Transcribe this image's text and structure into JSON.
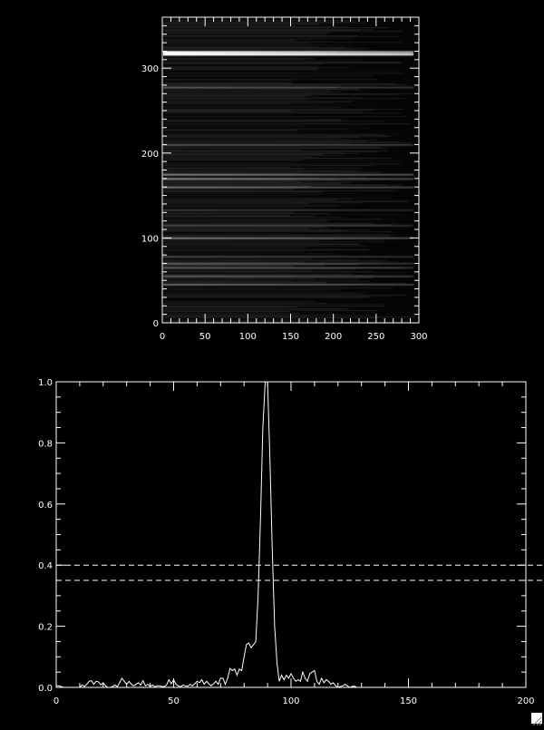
{
  "colors": {
    "background": "#000000",
    "foreground": "#ffffff"
  },
  "chart_data": [
    {
      "type": "heatmap",
      "xlim": [
        0,
        300
      ],
      "ylim": [
        0,
        360
      ],
      "xticks": [
        "0",
        "50",
        "100",
        "150",
        "200",
        "250",
        "300"
      ],
      "yticks": [
        "0",
        "100",
        "200",
        "300"
      ],
      "xtick_values": [
        0,
        50,
        100,
        150,
        200,
        250,
        300
      ],
      "ytick_values": [
        0,
        100,
        200,
        300
      ],
      "colormap": "grayscale",
      "bright_rows": [
        {
          "y": 320,
          "intensity": 1.0
        },
        {
          "y": 317,
          "intensity": 0.8
        },
        {
          "y": 278,
          "intensity": 0.3
        },
        {
          "y": 210,
          "intensity": 0.25
        },
        {
          "y": 175,
          "intensity": 0.5
        },
        {
          "y": 170,
          "intensity": 0.45
        },
        {
          "y": 160,
          "intensity": 0.4
        },
        {
          "y": 133,
          "intensity": 0.2
        },
        {
          "y": 115,
          "intensity": 0.2
        },
        {
          "y": 100,
          "intensity": 0.45
        },
        {
          "y": 78,
          "intensity": 0.25
        },
        {
          "y": 70,
          "intensity": 0.3
        },
        {
          "y": 65,
          "intensity": 0.3
        },
        {
          "y": 55,
          "intensity": 0.3
        },
        {
          "y": 45,
          "intensity": 0.35
        }
      ]
    },
    {
      "type": "line",
      "xlim": [
        0,
        200
      ],
      "ylim": [
        0,
        1.0
      ],
      "xticks": [
        "0",
        "50",
        "100",
        "150",
        "200"
      ],
      "yticks": [
        "0.0",
        "0.2",
        "0.4",
        "0.6",
        "0.8",
        "1.0"
      ],
      "xtick_values": [
        0,
        50,
        100,
        150,
        200
      ],
      "ytick_values": [
        0,
        0.2,
        0.4,
        0.6,
        0.8,
        1.0
      ],
      "hlines": [
        {
          "y": 0.4,
          "style": "dashed"
        },
        {
          "y": 0.35,
          "style": "dashed"
        }
      ],
      "x_start": 0,
      "values": [
        0.005,
        0.005,
        0.003,
        0,
        0,
        0,
        0,
        0,
        0,
        0,
        0,
        0.008,
        0.003,
        0.01,
        0.02,
        0.022,
        0.01,
        0.02,
        0.018,
        0.008,
        0.015,
        0.005,
        0,
        0,
        0.003,
        0.008,
        0.002,
        0.015,
        0.03,
        0.02,
        0.01,
        0.02,
        0.01,
        0.005,
        0.01,
        0.015,
        0.008,
        0.022,
        0.005,
        0.01,
        0.003,
        0.008,
        0.002,
        0.005,
        0.005,
        0.003,
        0.002,
        0.008,
        0.025,
        0.012,
        0.025,
        0.01,
        0.005,
        0.002,
        0.008,
        0.005,
        0.003,
        0.01,
        0.005,
        0.012,
        0.02,
        0.015,
        0.025,
        0.01,
        0.02,
        0.012,
        0.005,
        0.012,
        0.02,
        0.01,
        0.03,
        0.03,
        0.01,
        0.03,
        0.062,
        0.055,
        0.06,
        0.04,
        0.06,
        0.055,
        0.1,
        0.14,
        0.145,
        0.13,
        0.14,
        0.15,
        0.3,
        0.55,
        0.85,
        1.0,
        1.0,
        0.75,
        0.45,
        0.2,
        0.08,
        0.02,
        0.04,
        0.025,
        0.04,
        0.03,
        0.045,
        0.03,
        0.02,
        0.025,
        0.02,
        0.05,
        0.03,
        0.02,
        0.045,
        0.05,
        0.055,
        0.02,
        0.01,
        0.03,
        0.015,
        0.025,
        0.02,
        0.01,
        0.015,
        0.005,
        0,
        0.003,
        0.005,
        0.01,
        0.005,
        0,
        0.003,
        0.004,
        0,
        0,
        0
      ]
    }
  ]
}
